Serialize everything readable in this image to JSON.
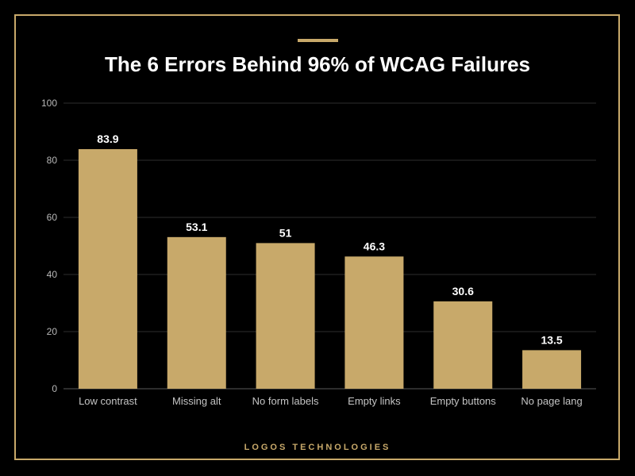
{
  "colors": {
    "background": "#000000",
    "accent": "#c8a96a",
    "bar": "#c8a96a",
    "gridline": "#2e2e2e",
    "text": "#ffffff"
  },
  "footer": {
    "brand": "LOGOS TECHNOLOGIES"
  },
  "chart_data": {
    "type": "bar",
    "title": "The 6 Errors Behind 96% of WCAG Failures",
    "categories": [
      "Low contrast",
      "Missing alt",
      "No form labels",
      "Empty links",
      "Empty buttons",
      "No page lang"
    ],
    "values": [
      83.9,
      53.1,
      51,
      46.3,
      30.6,
      13.5
    ],
    "value_labels": [
      "83.9",
      "53.1",
      "51",
      "46.3",
      "30.6",
      "13.5"
    ],
    "yticks": [
      "0",
      "20",
      "40",
      "60",
      "80",
      "100"
    ],
    "ylim": [
      0,
      100
    ],
    "xlabel": "",
    "ylabel": "",
    "grid": true,
    "legend": "none"
  }
}
